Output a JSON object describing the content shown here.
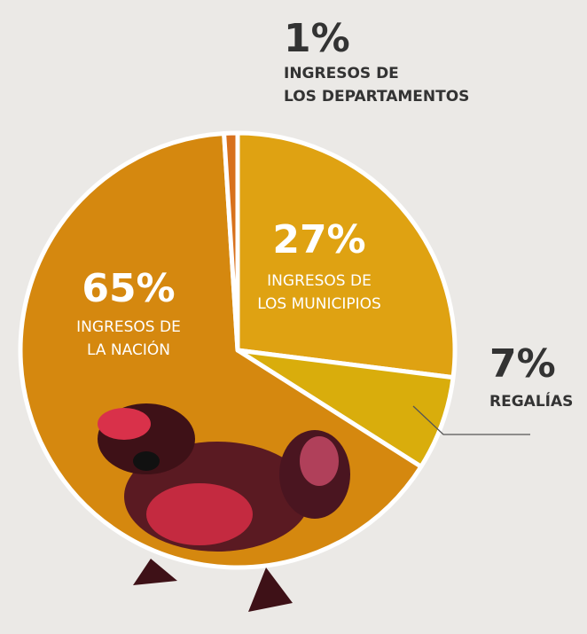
{
  "chart_data": {
    "type": "pie",
    "categories": [
      [
        "INGRESOS DE",
        "LOS MUNICIPIOS"
      ],
      [
        "REGALÍAS"
      ],
      [
        "INGRESOS DE",
        "LA NACIÓN"
      ],
      [
        "INGRESOS DE",
        "LOS DEPARTAMENTOS"
      ]
    ],
    "values": [
      27,
      7,
      65,
      1
    ],
    "value_labels": [
      "27%",
      "7%",
      "65%",
      "1%"
    ],
    "colors": [
      "#dfa212",
      "#d9ad0c",
      "#d5880f",
      "#d8711c"
    ]
  }
}
